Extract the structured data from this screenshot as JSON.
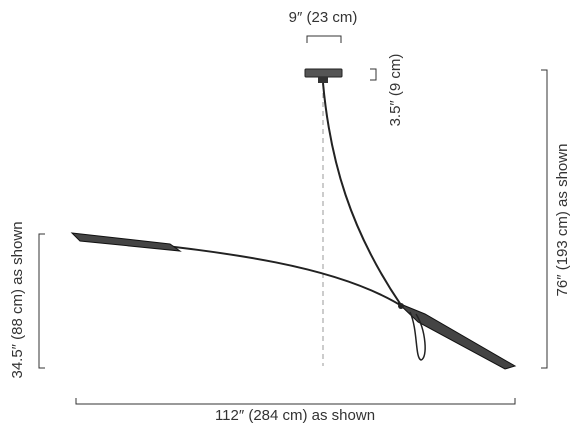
{
  "dimensions": {
    "canopy_width": "9″ (23 cm)",
    "canopy_height": "3.5″ (9 cm)",
    "overall_height": "76″ (193 cm) as shown",
    "arm_drop": "34.5″ (88 cm) as shown",
    "overall_width": "112″ (284 cm) as shown"
  }
}
